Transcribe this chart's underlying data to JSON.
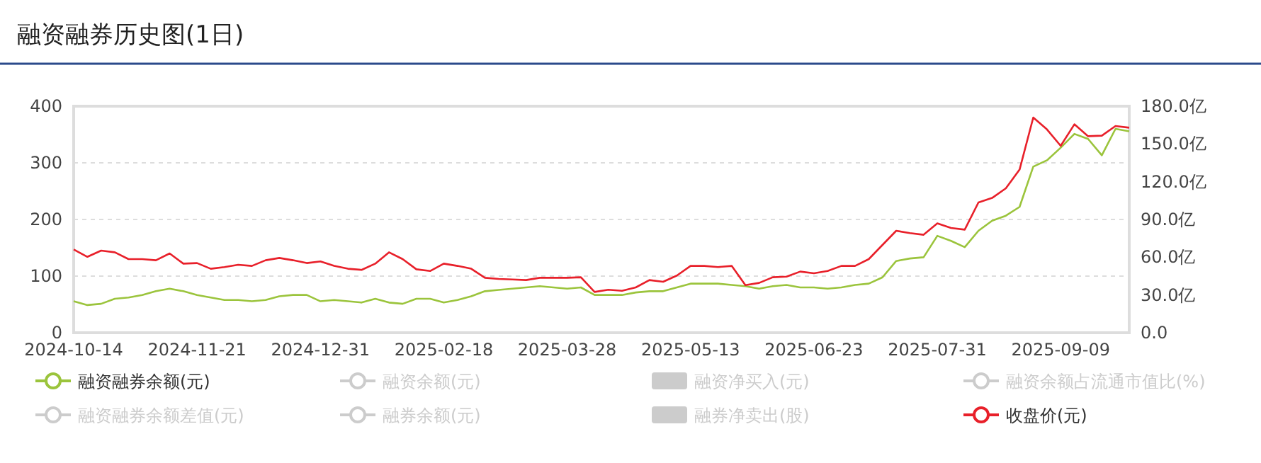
{
  "chart_data": {
    "type": "line",
    "title": "融资融券历史图(1日)",
    "categories": [
      "2024-10-14",
      null,
      null,
      null,
      null,
      null,
      null,
      null,
      null,
      "2024-11-21",
      null,
      null,
      null,
      null,
      null,
      null,
      null,
      null,
      "2024-12-31",
      null,
      null,
      null,
      null,
      null,
      null,
      null,
      null,
      "2025-02-18",
      null,
      null,
      null,
      null,
      null,
      null,
      null,
      null,
      "2025-03-28",
      null,
      null,
      null,
      null,
      null,
      null,
      null,
      null,
      "2025-05-13",
      null,
      null,
      null,
      null,
      null,
      null,
      null,
      null,
      "2025-06-23",
      null,
      null,
      null,
      null,
      null,
      null,
      null,
      null,
      "2025-07-31",
      null,
      null,
      null,
      null,
      null,
      null,
      null,
      null,
      "2025-09-09",
      null,
      null,
      null,
      null,
      null
    ],
    "series": [
      {
        "name": "融资融券余额(元)",
        "color": "#9bc43c",
        "axis": "y2",
        "values": [
          25,
          22,
          23,
          27,
          28,
          30,
          33,
          35,
          33,
          30,
          28,
          26,
          26,
          25,
          26,
          29,
          30,
          30,
          25,
          26,
          25,
          24,
          27,
          24,
          23,
          27,
          27,
          24,
          26,
          29,
          33,
          34,
          35,
          36,
          37,
          36,
          35,
          36,
          30,
          30,
          30,
          32,
          33,
          33,
          36,
          39,
          39,
          39,
          38,
          37,
          35,
          37,
          38,
          36,
          36,
          35,
          36,
          38,
          39,
          44,
          57,
          59,
          60,
          77,
          73,
          68,
          81,
          89,
          93,
          100,
          132,
          137,
          147,
          158,
          154,
          141,
          162,
          160
        ]
      },
      {
        "name": "融资余额(元)",
        "color": "#cccccc",
        "values": [
          null,
          null,
          null,
          null,
          null,
          null,
          null,
          null,
          null,
          null,
          null,
          null,
          null,
          null,
          null,
          null,
          null,
          null,
          null,
          null,
          null,
          null,
          null,
          null,
          null,
          null,
          null,
          null,
          null,
          null,
          null,
          null,
          null,
          null,
          null,
          null,
          null,
          null,
          null,
          null,
          null,
          null,
          null,
          null,
          null,
          null,
          null,
          null,
          null,
          null,
          null,
          null,
          null,
          null,
          null,
          null,
          null,
          null,
          null,
          null,
          null,
          null,
          null,
          null,
          null,
          null,
          null,
          null,
          null,
          null,
          null,
          null,
          null,
          null,
          null,
          null,
          null,
          null
        ]
      },
      {
        "name": "融资净买入(元)",
        "color": "#cccccc",
        "type": "bar",
        "values": [
          null,
          null,
          null,
          null,
          null,
          null,
          null,
          null,
          null,
          null,
          null,
          null,
          null,
          null,
          null,
          null,
          null,
          null,
          null,
          null,
          null,
          null,
          null,
          null,
          null,
          null,
          null,
          null,
          null,
          null,
          null,
          null,
          null,
          null,
          null,
          null,
          null,
          null,
          null,
          null,
          null,
          null,
          null,
          null,
          null,
          null,
          null,
          null,
          null,
          null,
          null,
          null,
          null,
          null,
          null,
          null,
          null,
          null,
          null,
          null,
          null,
          null,
          null,
          null,
          null,
          null,
          null,
          null,
          null,
          null,
          null,
          null,
          null,
          null,
          null,
          null,
          null,
          null
        ]
      },
      {
        "name": "融资余额占流通市值比(%)",
        "color": "#cccccc",
        "values": [
          null,
          null,
          null,
          null,
          null,
          null,
          null,
          null,
          null,
          null,
          null,
          null,
          null,
          null,
          null,
          null,
          null,
          null,
          null,
          null,
          null,
          null,
          null,
          null,
          null,
          null,
          null,
          null,
          null,
          null,
          null,
          null,
          null,
          null,
          null,
          null,
          null,
          null,
          null,
          null,
          null,
          null,
          null,
          null,
          null,
          null,
          null,
          null,
          null,
          null,
          null,
          null,
          null,
          null,
          null,
          null,
          null,
          null,
          null,
          null,
          null,
          null,
          null,
          null,
          null,
          null,
          null,
          null,
          null,
          null,
          null,
          null,
          null,
          null,
          null,
          null,
          null,
          null
        ]
      },
      {
        "name": "融资融券余额差值(元)",
        "color": "#cccccc",
        "values": [
          null,
          null,
          null,
          null,
          null,
          null,
          null,
          null,
          null,
          null,
          null,
          null,
          null,
          null,
          null,
          null,
          null,
          null,
          null,
          null,
          null,
          null,
          null,
          null,
          null,
          null,
          null,
          null,
          null,
          null,
          null,
          null,
          null,
          null,
          null,
          null,
          null,
          null,
          null,
          null,
          null,
          null,
          null,
          null,
          null,
          null,
          null,
          null,
          null,
          null,
          null,
          null,
          null,
          null,
          null,
          null,
          null,
          null,
          null,
          null,
          null,
          null,
          null,
          null,
          null,
          null,
          null,
          null,
          null,
          null,
          null,
          null,
          null,
          null,
          null,
          null,
          null,
          null
        ]
      },
      {
        "name": "融券余额(元)",
        "color": "#cccccc",
        "values": [
          null,
          null,
          null,
          null,
          null,
          null,
          null,
          null,
          null,
          null,
          null,
          null,
          null,
          null,
          null,
          null,
          null,
          null,
          null,
          null,
          null,
          null,
          null,
          null,
          null,
          null,
          null,
          null,
          null,
          null,
          null,
          null,
          null,
          null,
          null,
          null,
          null,
          null,
          null,
          null,
          null,
          null,
          null,
          null,
          null,
          null,
          null,
          null,
          null,
          null,
          null,
          null,
          null,
          null,
          null,
          null,
          null,
          null,
          null,
          null,
          null,
          null,
          null,
          null,
          null,
          null,
          null,
          null,
          null,
          null,
          null,
          null,
          null,
          null,
          null,
          null,
          null,
          null
        ]
      },
      {
        "name": "融券净卖出(股)",
        "color": "#cccccc",
        "type": "bar",
        "values": [
          null,
          null,
          null,
          null,
          null,
          null,
          null,
          null,
          null,
          null,
          null,
          null,
          null,
          null,
          null,
          null,
          null,
          null,
          null,
          null,
          null,
          null,
          null,
          null,
          null,
          null,
          null,
          null,
          null,
          null,
          null,
          null,
          null,
          null,
          null,
          null,
          null,
          null,
          null,
          null,
          null,
          null,
          null,
          null,
          null,
          null,
          null,
          null,
          null,
          null,
          null,
          null,
          null,
          null,
          null,
          null,
          null,
          null,
          null,
          null,
          null,
          null,
          null,
          null,
          null,
          null,
          null,
          null,
          null,
          null,
          null,
          null,
          null,
          null,
          null,
          null,
          null,
          null
        ]
      },
      {
        "name": "收盘价(元)",
        "color": "#e8202a",
        "axis": "y",
        "values": [
          147,
          134,
          145,
          142,
          130,
          130,
          128,
          140,
          122,
          123,
          113,
          116,
          120,
          118,
          128,
          132,
          128,
          123,
          126,
          118,
          113,
          111,
          122,
          142,
          130,
          112,
          109,
          122,
          118,
          113,
          97,
          95,
          94,
          93,
          97,
          97,
          97,
          98,
          72,
          76,
          74,
          80,
          93,
          90,
          101,
          118,
          118,
          116,
          118,
          84,
          88,
          98,
          99,
          108,
          105,
          109,
          118,
          118,
          130,
          155,
          180,
          176,
          173,
          193,
          185,
          182,
          230,
          238,
          255,
          288,
          380,
          359,
          330,
          368,
          347,
          348,
          365,
          362
        ]
      }
    ],
    "ylim": [
      0,
      400
    ],
    "yticks": [
      0,
      100,
      200,
      300,
      400
    ],
    "y2lim": [
      0,
      180
    ],
    "y2ticks": [
      {
        "value": 0,
        "label": "0.0"
      },
      {
        "value": 30,
        "label": "30.0亿"
      },
      {
        "value": 60,
        "label": "60.0亿"
      },
      {
        "value": 90,
        "label": "90.0亿"
      },
      {
        "value": 120,
        "label": "120.0亿"
      },
      {
        "value": 150,
        "label": "150.0亿"
      },
      {
        "value": 180,
        "label": "180.0亿"
      }
    ],
    "grid": "y",
    "legend": "bottom",
    "marker": "none"
  }
}
